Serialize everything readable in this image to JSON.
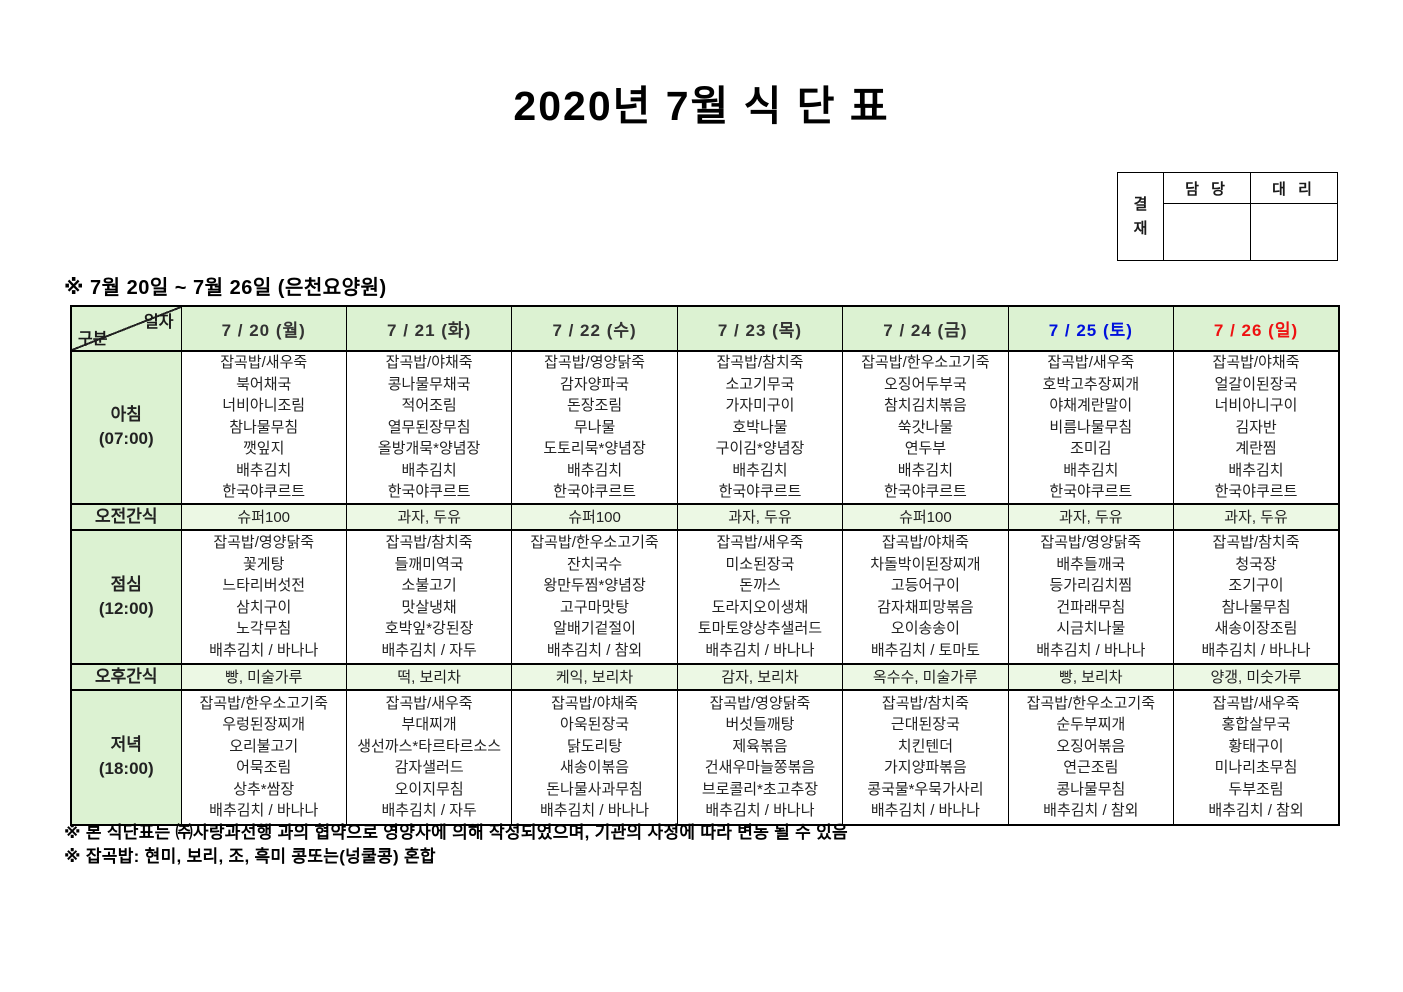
{
  "title": "2020년 7월 식 단 표",
  "approval": {
    "label_chars": [
      "결",
      "재"
    ],
    "col_manager": "담 당",
    "col_deputy": "대 리"
  },
  "subtitle": "※ 7월 20일 ~ 7월 26일 (은천요양원)",
  "table": {
    "corner": {
      "top_right": "일자",
      "bottom_left": "구분"
    },
    "weekday_color": "#333333",
    "days": [
      {
        "label": "7 / 20 (월)",
        "color": "#333333"
      },
      {
        "label": "7 / 21 (화)",
        "color": "#333333"
      },
      {
        "label": "7 / 22 (수)",
        "color": "#333333"
      },
      {
        "label": "7 / 23 (목)",
        "color": "#333333"
      },
      {
        "label": "7 / 24 (금)",
        "color": "#333333"
      },
      {
        "label": "7 / 25 (토)",
        "color": "#0011dd"
      },
      {
        "label": "7 / 26 (일)",
        "color": "#ee1111"
      }
    ],
    "rows": [
      {
        "key": "breakfast",
        "type": "meal",
        "category": "아침",
        "time": "(07:00)",
        "cells": [
          [
            "잡곡밥/새우죽",
            "북어채국",
            "너비아니조림",
            "참나물무침",
            "깻잎지",
            "배추김치",
            "한국야쿠르트"
          ],
          [
            "잡곡밥/야채죽",
            "콩나물무채국",
            "적어조림",
            "열무된장무침",
            "올방개묵*양념장",
            "배추김치",
            "한국야쿠르트"
          ],
          [
            "잡곡밥/영양닭죽",
            "감자양파국",
            "돈장조림",
            "무나물",
            "도토리묵*양념장",
            "배추김치",
            "한국야쿠르트"
          ],
          [
            "잡곡밥/참치죽",
            "소고기무국",
            "가자미구이",
            "호박나물",
            "구이김*양념장",
            "배추김치",
            "한국야쿠르트"
          ],
          [
            "잡곡밥/한우소고기죽",
            "오징어두부국",
            "참치김치볶음",
            "쑥갓나물",
            "연두부",
            "배추김치",
            "한국야쿠르트"
          ],
          [
            "잡곡밥/새우죽",
            "호박고추장찌개",
            "야채계란말이",
            "비름나물무침",
            "조미김",
            "배추김치",
            "한국야쿠르트"
          ],
          [
            "잡곡밥/야채죽",
            "얼갈이된장국",
            "너비아니구이",
            "김자반",
            "계란찜",
            "배추김치",
            "한국야쿠르트"
          ]
        ]
      },
      {
        "key": "am-snack",
        "type": "snack",
        "category": "오전간식",
        "cells": [
          "슈퍼100",
          "과자, 두유",
          "슈퍼100",
          "과자, 두유",
          "슈퍼100",
          "과자, 두유",
          "과자, 두유"
        ]
      },
      {
        "key": "lunch",
        "type": "meal",
        "category": "점심",
        "time": "(12:00)",
        "cells": [
          [
            "잡곡밥/영양닭죽",
            "꽃게탕",
            "느타리버섯전",
            "삼치구이",
            "노각무침",
            "배추김치 / 바나나"
          ],
          [
            "잡곡밥/참치죽",
            "들깨미역국",
            "소불고기",
            "맛살냉채",
            "호박잎*강된장",
            "배추김치 / 자두"
          ],
          [
            "잡곡밥/한우소고기죽",
            "잔치국수",
            "왕만두찜*양념장",
            "고구마맛탕",
            "알배기겉절이",
            "배추김치 / 참외"
          ],
          [
            "잡곡밥/새우죽",
            "미소된장국",
            "돈까스",
            "도라지오이생채",
            "토마토양상추샐러드",
            "배추김치 / 바나나"
          ],
          [
            "잡곡밥/야채죽",
            "차돌박이된장찌개",
            "고등어구이",
            "감자채피망볶음",
            "오이송송이",
            "배추김치 / 토마토"
          ],
          [
            "잡곡밥/영양닭죽",
            "배추들깨국",
            "등가리김치찜",
            "건파래무침",
            "시금치나물",
            "배추김치 / 바나나"
          ],
          [
            "잡곡밥/참치죽",
            "청국장",
            "조기구이",
            "참나물무침",
            "새송이장조림",
            "배추김치 / 바나나"
          ]
        ]
      },
      {
        "key": "pm-snack",
        "type": "snack",
        "category": "오후간식",
        "cells": [
          "빵, 미술가루",
          "떡, 보리차",
          "케익, 보리차",
          "감자, 보리차",
          "옥수수, 미술가루",
          "빵, 보리차",
          "양갱, 미숫가루"
        ]
      },
      {
        "key": "dinner",
        "type": "meal",
        "category": "저녁",
        "time": "(18:00)",
        "cells": [
          [
            "잡곡밥/한우소고기죽",
            "우렁된장찌개",
            "오리불고기",
            "어묵조림",
            "상추*쌈장",
            "배추김치 / 바나나"
          ],
          [
            "잡곡밥/새우죽",
            "부대찌개",
            "생선까스*타르타르소스",
            "감자샐러드",
            "오이지무침",
            "배추김치 / 자두"
          ],
          [
            "잡곡밥/야채죽",
            "아욱된장국",
            "닭도리탕",
            "새송이볶음",
            "돈나물사과무침",
            "배추김치 / 바나나"
          ],
          [
            "잡곡밥/영양닭죽",
            "버섯들깨탕",
            "제육볶음",
            "건새우마늘쫑볶음",
            "브로콜리*초고추장",
            "배추김치 / 바나나"
          ],
          [
            "잡곡밥/참치죽",
            "근대된장국",
            "치킨텐더",
            "가지양파볶음",
            "콩국물*우묵가사리",
            "배추김치 / 바나나"
          ],
          [
            "잡곡밥/한우소고기죽",
            "순두부찌개",
            "오징어볶음",
            "연근조림",
            "콩나물무침",
            "배추김치 / 참외"
          ],
          [
            "잡곡밥/새우죽",
            "홍합살무국",
            "황태구이",
            "미나리초무침",
            "두부조림",
            "배추김치 / 참외"
          ]
        ]
      }
    ]
  },
  "notes": [
    "※ 본 식단표는 ㈜사랑과선행 과의 협약으로 영양사에 의해 작성되었으며, 기관의 사정에 따라 변동 될 수 있음",
    "※ 잡곡밥: 현미, 보리, 조, 흑미 콩또는(넝쿨콩) 혼합"
  ]
}
